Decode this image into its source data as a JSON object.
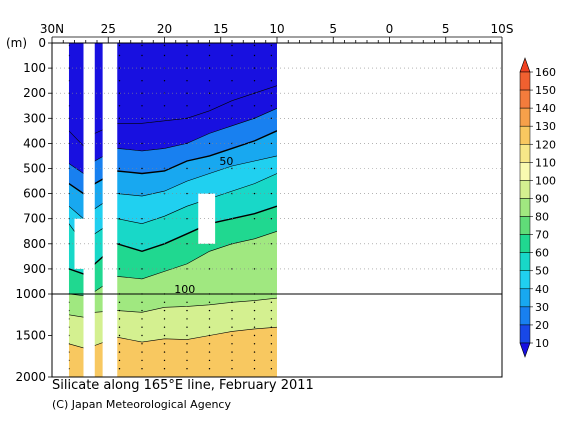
{
  "chart_data": {
    "type": "heatmap",
    "title": "Silicate along 165°E line, February 2011",
    "credit": "(C) Japan Meteorological Agency",
    "y_unit": "(m)",
    "x_tick_labels": [
      "30N",
      "25",
      "20",
      "15",
      "10",
      "5",
      "0",
      "5",
      "10S"
    ],
    "x_tick_lats": [
      30,
      25,
      20,
      15,
      10,
      5,
      0,
      -5,
      -10
    ],
    "y_tick_labels_upper": [
      "0",
      "100",
      "200",
      "300",
      "400",
      "500",
      "600",
      "700",
      "800",
      "900",
      "1000"
    ],
    "y_tick_labels_lower": [
      "1500",
      "2000"
    ],
    "y_upper_range": [
      0,
      1000
    ],
    "y_lower_range": [
      1000,
      2000
    ],
    "x_range": [
      30,
      -10
    ],
    "data_extent_lat": [
      28.5,
      10
    ],
    "gaps_lat": [
      [
        27.2,
        26.2
      ],
      [
        25.5,
        24.2
      ]
    ],
    "missing_boxes": [
      {
        "lat": [
          28,
          27.2
        ],
        "depth": [
          700,
          900
        ]
      },
      {
        "lat": [
          17,
          15.5
        ],
        "depth": [
          600,
          800
        ]
      }
    ],
    "contour_levels": [
      10,
      20,
      30,
      40,
      50,
      60,
      70,
      80,
      90,
      100,
      110,
      120,
      130,
      140,
      150,
      160
    ],
    "contour_labels": [
      {
        "text": "50",
        "lat": 14.5,
        "depth": 470
      },
      {
        "text": "100",
        "lat": 18.2,
        "depth": 980
      }
    ],
    "colorbar": {
      "labels": [
        "160",
        "150",
        "140",
        "130",
        "120",
        "110",
        "100",
        "90",
        "80",
        "70",
        "60",
        "50",
        "40",
        "30",
        "20",
        "10"
      ],
      "colors": [
        "#f04020",
        "#f06030",
        "#f47c3c",
        "#f7a04a",
        "#f8c860",
        "#f7e888",
        "#f8fab0",
        "#d4f090",
        "#a0e880",
        "#60dc78",
        "#20d890",
        "#18d8c8",
        "#20d0f0",
        "#18a8f0",
        "#1880f0",
        "#1848e8",
        "#1810e0"
      ]
    },
    "profiles": [
      {
        "lat": 28.5,
        "depths": [
          0,
          350,
          480,
          560,
          650,
          720,
          900,
          1000,
          1250,
          1600,
          2000
        ]
      },
      {
        "lat": 27.2,
        "depths": [
          0,
          410,
          520,
          600,
          700,
          800,
          920,
          1020,
          1280,
          1650,
          2000
        ]
      },
      {
        "lat": 26.2,
        "depths": [
          0,
          360,
          470,
          560,
          660,
          760,
          880,
          990,
          1220,
          1620,
          2000
        ]
      },
      {
        "lat": 24.2,
        "depths": [
          0,
          320,
          420,
          510,
          600,
          700,
          800,
          930,
          1200,
          1520,
          2000
        ]
      },
      {
        "lat": 22.0,
        "depths": [
          0,
          320,
          430,
          520,
          610,
          720,
          830,
          940,
          1220,
          1580,
          2000
        ]
      },
      {
        "lat": 20.0,
        "depths": [
          0,
          310,
          420,
          510,
          590,
          690,
          800,
          910,
          1160,
          1540,
          2000
        ]
      },
      {
        "lat": 18.0,
        "depths": [
          0,
          300,
          400,
          470,
          550,
          650,
          760,
          880,
          1150,
          1550,
          2000
        ]
      },
      {
        "lat": 16.0,
        "depths": [
          0,
          270,
          360,
          450,
          520,
          620,
          720,
          830,
          1130,
          1500,
          2000
        ]
      },
      {
        "lat": 14.0,
        "depths": [
          0,
          230,
          330,
          420,
          490,
          590,
          700,
          800,
          1100,
          1450,
          2000
        ]
      },
      {
        "lat": 12.0,
        "depths": [
          0,
          200,
          300,
          390,
          470,
          560,
          680,
          780,
          1080,
          1420,
          2000
        ]
      },
      {
        "lat": 10.0,
        "depths": [
          0,
          170,
          260,
          350,
          450,
          520,
          650,
          750,
          1050,
          1400,
          2000
        ]
      }
    ],
    "profile_band_levels": [
      10,
      30,
      40,
      50,
      60,
      70,
      90,
      100,
      130,
      150
    ],
    "sample_depths": [
      10,
      50,
      100,
      150,
      200,
      250,
      300,
      400,
      500,
      600,
      700,
      800,
      900,
      1000,
      1100,
      1200,
      1300,
      1400,
      1500,
      1600,
      1700,
      1800,
      1900
    ],
    "sample_lats": [
      28.5,
      26.5,
      24.0,
      22.0,
      20.0,
      18.0,
      16.0,
      14.0,
      12.0,
      10.5
    ]
  }
}
